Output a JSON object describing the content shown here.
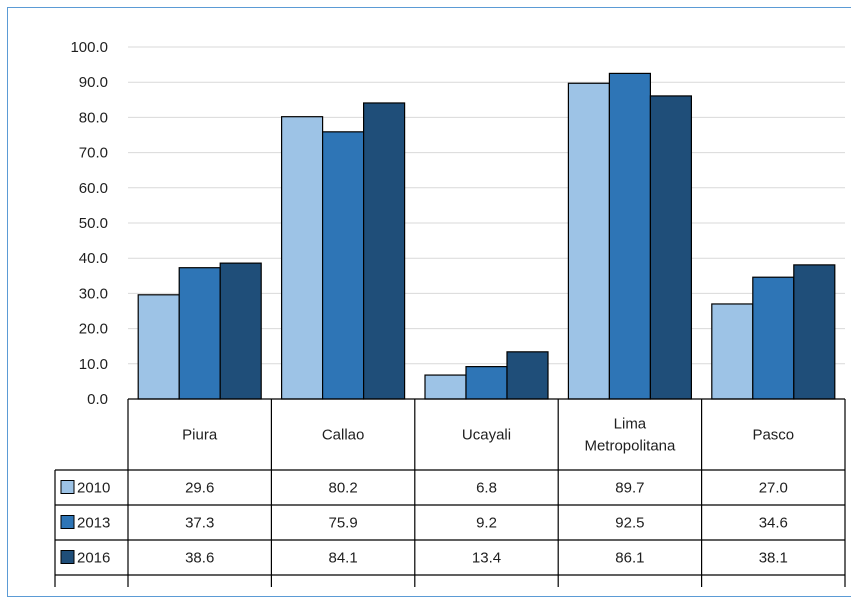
{
  "chart_data": {
    "type": "bar",
    "title": "",
    "xlabel": "",
    "ylabel": "",
    "ylim": [
      0,
      100
    ],
    "yticks": [
      "0.0",
      "10.0",
      "20.0",
      "30.0",
      "40.0",
      "50.0",
      "60.0",
      "70.0",
      "80.0",
      "90.0",
      "100.0"
    ],
    "grid": true,
    "legend": "data-table",
    "categories": [
      "Piura",
      "Callao",
      "Ucayali",
      "Lima Metropolitana",
      "Pasco"
    ],
    "category_label_lines": [
      [
        "Piura"
      ],
      [
        "Callao"
      ],
      [
        "Ucayali"
      ],
      [
        "Lima",
        "Metropolitana"
      ],
      [
        "Pasco"
      ]
    ],
    "series": [
      {
        "name": "2010",
        "color": "#9dc3e6",
        "values": [
          29.6,
          80.2,
          6.8,
          89.7,
          27.0
        ],
        "labels": [
          "29.6",
          "80.2",
          "6.8",
          "89.7",
          "27.0"
        ]
      },
      {
        "name": "2013",
        "color": "#2e75b6",
        "values": [
          37.3,
          75.9,
          9.2,
          92.5,
          34.6
        ],
        "labels": [
          "37.3",
          "75.9",
          "9.2",
          "92.5",
          "34.6"
        ]
      },
      {
        "name": "2016",
        "color": "#1f4e79",
        "values": [
          38.6,
          84.1,
          13.4,
          86.1,
          38.1
        ],
        "labels": [
          "38.6",
          "84.1",
          "13.4",
          "86.1",
          "38.1"
        ]
      }
    ]
  }
}
